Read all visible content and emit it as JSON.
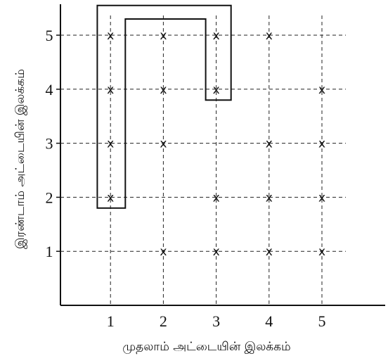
{
  "chart_data": {
    "type": "scatter",
    "title": "",
    "xlabel": "முதலாம் அட்டையின் இலக்கம்",
    "ylabel": "இரண்டாம் அட்டையின் இலக்கம்",
    "x_ticks": [
      "1",
      "2",
      "3",
      "4",
      "5"
    ],
    "y_ticks": [
      "1",
      "2",
      "3",
      "4",
      "5"
    ],
    "xlim": [
      0,
      5.9
    ],
    "ylim": [
      0,
      5.55
    ],
    "grid": "dashed",
    "marker": "x",
    "points": [
      {
        "x": 1,
        "y": 5
      },
      {
        "x": 2,
        "y": 5
      },
      {
        "x": 3,
        "y": 5
      },
      {
        "x": 4,
        "y": 5
      },
      {
        "x": 1,
        "y": 4
      },
      {
        "x": 2,
        "y": 4
      },
      {
        "x": 3,
        "y": 4
      },
      {
        "x": 5,
        "y": 4
      },
      {
        "x": 1,
        "y": 3
      },
      {
        "x": 2,
        "y": 3
      },
      {
        "x": 4,
        "y": 3
      },
      {
        "x": 5,
        "y": 3
      },
      {
        "x": 1,
        "y": 2
      },
      {
        "x": 3,
        "y": 2
      },
      {
        "x": 4,
        "y": 2
      },
      {
        "x": 5,
        "y": 2
      },
      {
        "x": 2,
        "y": 1
      },
      {
        "x": 3,
        "y": 1
      },
      {
        "x": 4,
        "y": 1
      },
      {
        "x": 5,
        "y": 1
      }
    ],
    "region": [
      [
        0.75,
        5.55
      ],
      [
        3.28,
        5.55
      ],
      [
        3.28,
        3.8
      ],
      [
        2.8,
        3.8
      ],
      [
        2.8,
        5.3
      ],
      [
        1.28,
        5.3
      ],
      [
        1.28,
        1.8
      ],
      [
        0.75,
        1.8
      ]
    ]
  }
}
